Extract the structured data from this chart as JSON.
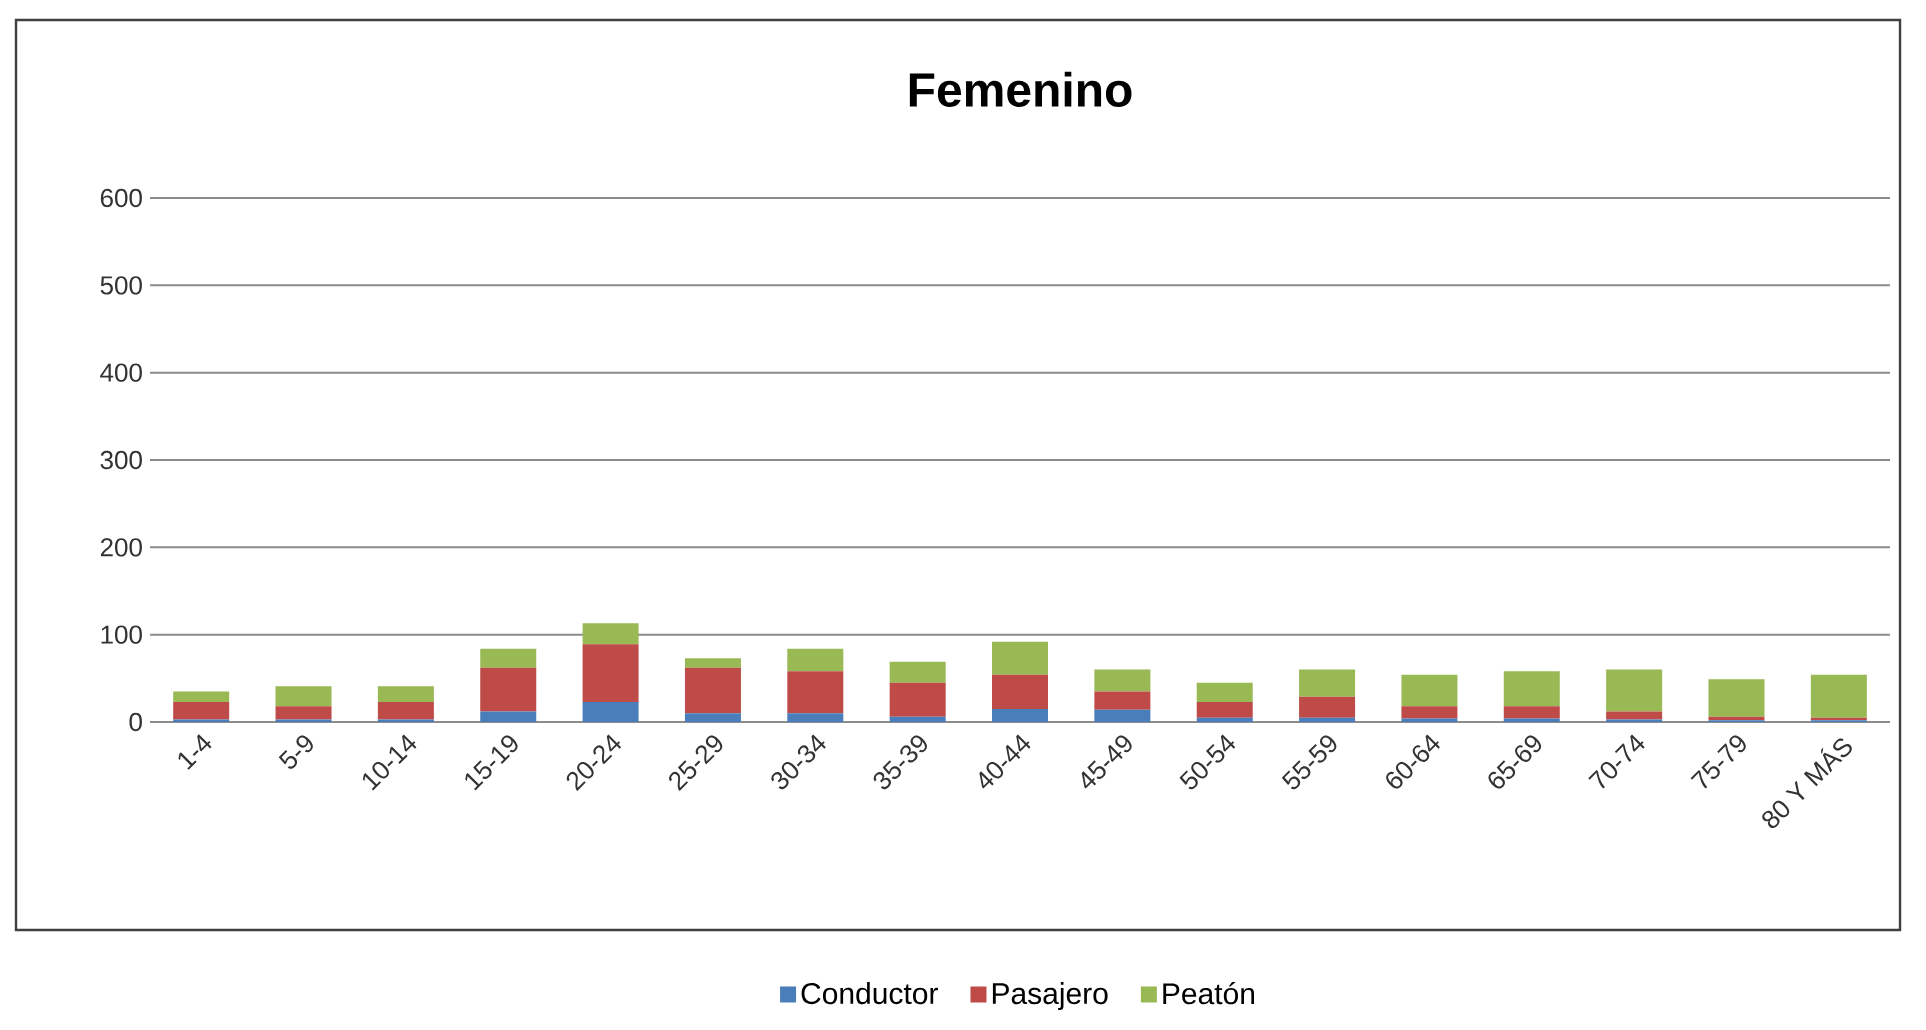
{
  "chart_data": {
    "type": "bar",
    "title": "Femenino",
    "stacked": true,
    "grid": "y",
    "legend": "bottom",
    "categories": [
      "1-4",
      "5-9",
      "10-14",
      "15-19",
      "20-24",
      "25-29",
      "30-34",
      "35-39",
      "40-44",
      "45-49",
      "50-54",
      "55-59",
      "60-64",
      "65-69",
      "70-74",
      "75-79",
      "80 Y MÁS"
    ],
    "ylim": [
      0,
      600
    ],
    "yticks": [
      0,
      100,
      200,
      300,
      400,
      500,
      600
    ],
    "series": [
      {
        "name": "Conductor",
        "color": "#4a7ebb",
        "values": [
          3,
          3,
          3,
          12,
          23,
          10,
          10,
          6,
          15,
          14,
          5,
          5,
          4,
          4,
          3,
          2,
          2
        ]
      },
      {
        "name": "Pasajero",
        "color": "#be4b48",
        "values": [
          20,
          15,
          20,
          50,
          66,
          52,
          48,
          39,
          39,
          21,
          18,
          24,
          14,
          14,
          9,
          4,
          3
        ]
      },
      {
        "name": "Peatón",
        "color": "#98b954",
        "values": [
          12,
          23,
          18,
          22,
          24,
          11,
          26,
          24,
          38,
          25,
          22,
          31,
          36,
          40,
          48,
          43,
          49
        ]
      }
    ]
  }
}
